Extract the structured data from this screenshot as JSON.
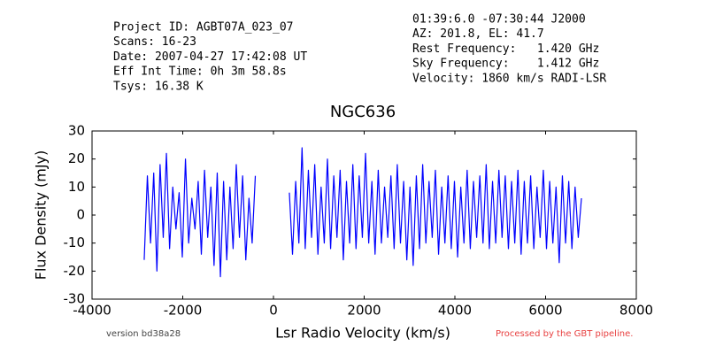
{
  "chart_data": {
    "type": "line",
    "title": "NGC636",
    "xlabel": "Lsr Radio Velocity (km/s)",
    "ylabel": "Flux Density (mJy)",
    "info_left": [
      "Project ID: AGBT07A_023_07",
      "Scans: 16-23",
      "Date: 2007-04-27 17:42:08 UT",
      "Eff Int Time: 0h 3m 58.8s",
      "Tsys: 16.38 K"
    ],
    "info_right": [
      "01:39:6.0 -07:30:44 J2000",
      "AZ: 201.8, EL: 41.7",
      "Rest Frequency:   1.420 GHz",
      "Sky Frequency:    1.412 GHz",
      "Velocity: 1860 km/s RADI-LSR"
    ],
    "footer_left": "version bd38a28",
    "footer_right": "Processed by the GBT pipeline.",
    "color": "#0000ff",
    "xlim": [
      -4000,
      8000
    ],
    "xticks": [
      -4000,
      -2000,
      0,
      2000,
      4000,
      6000,
      8000
    ],
    "ylim": [
      -30,
      30
    ],
    "yticks": [
      -30,
      -20,
      -10,
      0,
      10,
      20,
      30
    ],
    "x": [
      -2850,
      -2780,
      -2710,
      -2640,
      -2570,
      -2500,
      -2430,
      -2360,
      -2290,
      -2220,
      -2150,
      -2080,
      -2010,
      -1940,
      -1870,
      -1800,
      -1730,
      -1660,
      -1590,
      -1520,
      -1450,
      -1380,
      -1310,
      -1240,
      -1170,
      -1100,
      -1030,
      -960,
      -890,
      -820,
      -750,
      -680,
      -610,
      -540,
      -470,
      -400,
      0,
      350,
      420,
      490,
      560,
      630,
      700,
      770,
      840,
      910,
      980,
      1050,
      1120,
      1190,
      1260,
      1330,
      1400,
      1470,
      1540,
      1610,
      1680,
      1750,
      1820,
      1890,
      1960,
      2030,
      2100,
      2170,
      2240,
      2310,
      2380,
      2450,
      2520,
      2590,
      2660,
      2730,
      2800,
      2870,
      2940,
      3010,
      3080,
      3150,
      3220,
      3290,
      3360,
      3430,
      3500,
      3570,
      3640,
      3710,
      3780,
      3850,
      3920,
      3990,
      4060,
      4130,
      4200,
      4270,
      4340,
      4410,
      4480,
      4550,
      4620,
      4690,
      4760,
      4830,
      4900,
      4970,
      5040,
      5110,
      5180,
      5250,
      5320,
      5390,
      5460,
      5530,
      5600,
      5670,
      5740,
      5810,
      5880,
      5950,
      6020,
      6090,
      6160,
      6230,
      6300,
      6370,
      6440,
      6510,
      6580,
      6650,
      6720,
      6790
    ],
    "values": [
      -16,
      14,
      -10,
      15,
      -20,
      18,
      -8,
      22,
      -12,
      10,
      -5,
      8,
      -15,
      20,
      -10,
      6,
      -5,
      12,
      -14,
      16,
      -8,
      10,
      -18,
      15,
      -22,
      12,
      -16,
      10,
      -12,
      18,
      -8,
      14,
      -16,
      6,
      -10,
      14,
      null,
      8,
      -14,
      12,
      -10,
      24,
      -12,
      16,
      -8,
      18,
      -14,
      10,
      -10,
      20,
      -12,
      14,
      -8,
      16,
      -16,
      12,
      -10,
      18,
      -12,
      14,
      -8,
      22,
      -10,
      12,
      -14,
      16,
      -10,
      10,
      -8,
      14,
      -12,
      18,
      -10,
      12,
      -16,
      10,
      -18,
      14,
      -12,
      18,
      -10,
      12,
      -8,
      16,
      -14,
      10,
      -10,
      14,
      -12,
      12,
      -15,
      10,
      -10,
      16,
      -12,
      12,
      -8,
      14,
      -10,
      18,
      -12,
      12,
      -10,
      16,
      -8,
      14,
      -12,
      12,
      -10,
      16,
      -14,
      12,
      -10,
      14,
      -12,
      10,
      -8,
      16,
      -12,
      12,
      -10,
      10,
      -17,
      14,
      -10,
      12,
      -12,
      10,
      -8,
      6
    ]
  }
}
